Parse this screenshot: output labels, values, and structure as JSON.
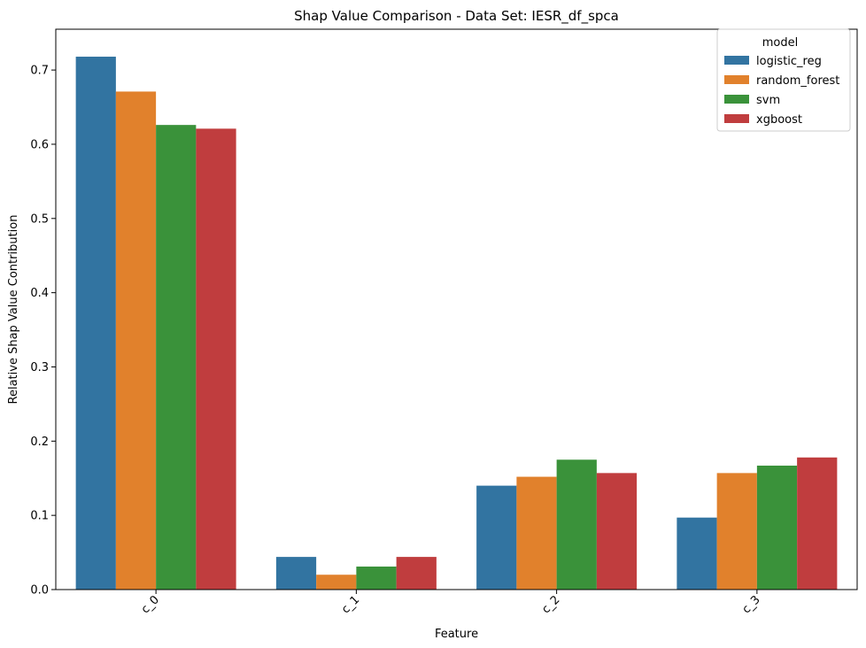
{
  "chart_data": {
    "type": "bar",
    "title": "Shap Value Comparison - Data Set: IESR_df_spca",
    "xlabel": "Feature",
    "ylabel": "Relative Shap Value Contribution",
    "categories": [
      "c_0",
      "c_1",
      "c_2",
      "c_3"
    ],
    "ylim": [
      0,
      0.755
    ],
    "yticks": [
      "0.0",
      "0.1",
      "0.2",
      "0.3",
      "0.4",
      "0.5",
      "0.6",
      "0.7"
    ],
    "grid": false,
    "legend": {
      "title": "model",
      "placement": "top-right"
    },
    "series": [
      {
        "name": "logistic_reg",
        "color": "#3274a1",
        "values": [
          0.718,
          0.044,
          0.14,
          0.097
        ]
      },
      {
        "name": "random_forest",
        "color": "#e1812c",
        "values": [
          0.671,
          0.02,
          0.152,
          0.157
        ]
      },
      {
        "name": "svm",
        "color": "#3a923a",
        "values": [
          0.626,
          0.031,
          0.175,
          0.167
        ]
      },
      {
        "name": "xgboost",
        "color": "#c03d3e",
        "values": [
          0.621,
          0.044,
          0.157,
          0.178
        ]
      }
    ]
  }
}
